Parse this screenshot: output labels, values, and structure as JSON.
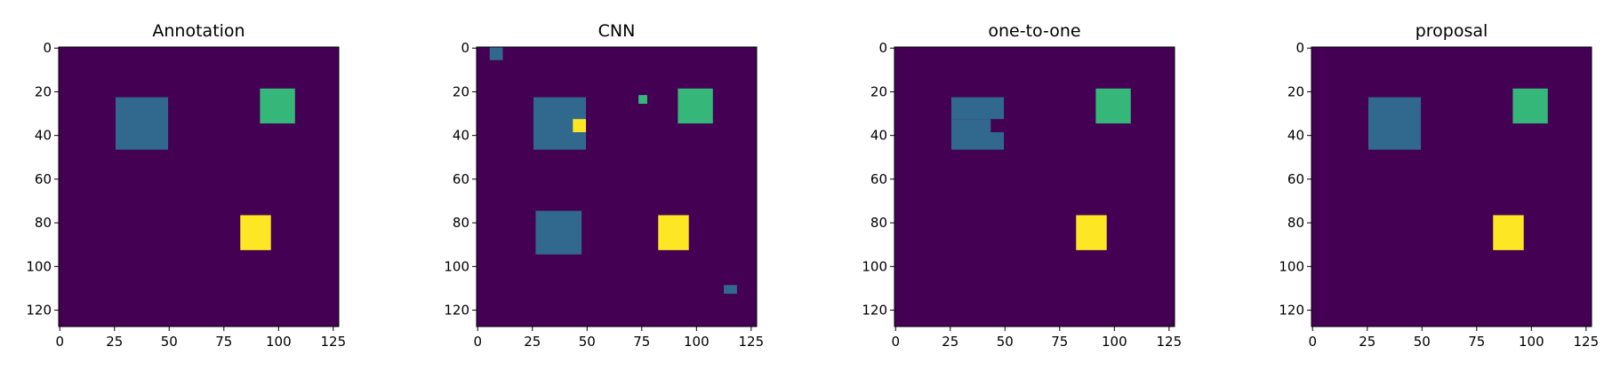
{
  "colors": {
    "background": "#440154",
    "class_1": "#31688e",
    "class_2": "#35b779",
    "class_3": "#fde725"
  },
  "chart_data": [
    {
      "type": "heatmap",
      "title": "Annotation",
      "xlim": [
        0,
        128
      ],
      "ylim": [
        128,
        0
      ],
      "xticks": [
        0,
        25,
        50,
        75,
        100,
        125
      ],
      "yticks": [
        0,
        20,
        40,
        60,
        80,
        100,
        120
      ],
      "grid": false,
      "regions": [
        {
          "class": 1,
          "x0": 26,
          "x1": 50,
          "y0": 23,
          "y1": 47
        },
        {
          "class": 2,
          "x0": 92,
          "x1": 108,
          "y0": 19,
          "y1": 35
        },
        {
          "class": 3,
          "x0": 83,
          "x1": 97,
          "y0": 77,
          "y1": 93
        }
      ]
    },
    {
      "type": "heatmap",
      "title": "CNN",
      "xlim": [
        0,
        128
      ],
      "ylim": [
        128,
        0
      ],
      "xticks": [
        0,
        25,
        50,
        75,
        100,
        125
      ],
      "yticks": [
        0,
        20,
        40,
        60,
        80,
        100,
        120
      ],
      "grid": false,
      "regions": [
        {
          "class": 1,
          "x0": 6,
          "x1": 12,
          "y0": 0,
          "y1": 6
        },
        {
          "class": 1,
          "x0": 26,
          "x1": 50,
          "y0": 23,
          "y1": 47
        },
        {
          "class": 3,
          "x0": 44,
          "x1": 50,
          "y0": 33,
          "y1": 39
        },
        {
          "class": 2,
          "x0": 74,
          "x1": 78,
          "y0": 22,
          "y1": 26
        },
        {
          "class": 2,
          "x0": 92,
          "x1": 108,
          "y0": 19,
          "y1": 35
        },
        {
          "class": 1,
          "x0": 27,
          "x1": 48,
          "y0": 75,
          "y1": 95
        },
        {
          "class": 3,
          "x0": 83,
          "x1": 97,
          "y0": 77,
          "y1": 93
        },
        {
          "class": 1,
          "x0": 113,
          "x1": 119,
          "y0": 109,
          "y1": 113
        }
      ]
    },
    {
      "type": "heatmap",
      "title": "one-to-one",
      "xlim": [
        0,
        128
      ],
      "ylim": [
        128,
        0
      ],
      "xticks": [
        0,
        25,
        50,
        75,
        100,
        125
      ],
      "yticks": [
        0,
        20,
        40,
        60,
        80,
        100,
        120
      ],
      "grid": false,
      "regions": [
        {
          "class": 1,
          "x0": 26,
          "x1": 50,
          "y0": 23,
          "y1": 33
        },
        {
          "class": 1,
          "x0": 26,
          "x1": 44,
          "y0": 33,
          "y1": 39
        },
        {
          "class": 1,
          "x0": 26,
          "x1": 50,
          "y0": 39,
          "y1": 47
        },
        {
          "class": 2,
          "x0": 92,
          "x1": 108,
          "y0": 19,
          "y1": 35
        },
        {
          "class": 3,
          "x0": 83,
          "x1": 97,
          "y0": 77,
          "y1": 93
        }
      ]
    },
    {
      "type": "heatmap",
      "title": "proposal",
      "xlim": [
        0,
        128
      ],
      "ylim": [
        128,
        0
      ],
      "xticks": [
        0,
        25,
        50,
        75,
        100,
        125
      ],
      "yticks": [
        0,
        20,
        40,
        60,
        80,
        100,
        120
      ],
      "grid": false,
      "regions": [
        {
          "class": 1,
          "x0": 26,
          "x1": 50,
          "y0": 23,
          "y1": 47
        },
        {
          "class": 2,
          "x0": 92,
          "x1": 108,
          "y0": 19,
          "y1": 35
        },
        {
          "class": 3,
          "x0": 83,
          "x1": 97,
          "y0": 77,
          "y1": 93
        }
      ]
    }
  ]
}
